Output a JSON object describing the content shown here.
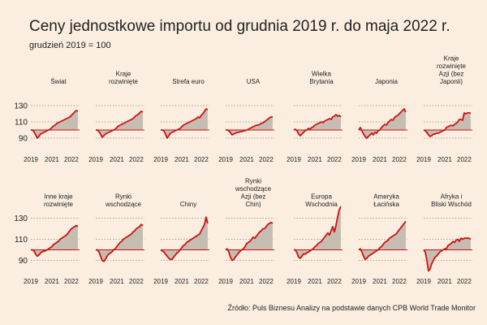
{
  "title": "Ceny jednostkowe importu od grudnia 2019 r. do maja 2022 r.",
  "subtitle": "grudzień 2019 = 100",
  "source": "Źródło: Puls Biznesu Analizy na podstawie danych CPB World Trade Monitor",
  "colors": {
    "line": "#cc1111",
    "fill": "#c5bdb2",
    "background": "#fbeee0",
    "grid": "#555555"
  },
  "chart_data": {
    "type": "area",
    "baseline": 100,
    "ylim": [
      85,
      135
    ],
    "yticks": [
      90,
      110,
      130
    ],
    "xlim": [
      2019.92,
      2022.42
    ],
    "xticks": [
      2019,
      2021,
      2022
    ],
    "xtick_positions": [
      2019.92,
      2021.0,
      2022.0
    ],
    "x": [
      2019.917,
      2020.0,
      2020.083,
      2020.167,
      2020.25,
      2020.333,
      2020.417,
      2020.5,
      2020.583,
      2020.667,
      2020.75,
      2020.833,
      2020.917,
      2021.0,
      2021.083,
      2021.167,
      2021.25,
      2021.333,
      2021.417,
      2021.5,
      2021.583,
      2021.667,
      2021.75,
      2021.833,
      2021.917,
      2022.0,
      2022.083,
      2022.167,
      2022.25,
      2022.333
    ],
    "series": [
      {
        "name": "Świat",
        "values": [
          100,
          100,
          98,
          94,
          90,
          92,
          95,
          96,
          97,
          98,
          99,
          100,
          101,
          103,
          105,
          106,
          108,
          109,
          110,
          111,
          112,
          113,
          114,
          115,
          116,
          118,
          120,
          122,
          124,
          123
        ]
      },
      {
        "name": "Kraje rozwinięte",
        "values": [
          100,
          100,
          98,
          95,
          91,
          93,
          95,
          96,
          97,
          98,
          99,
          100,
          101,
          103,
          105,
          106,
          107,
          108,
          109,
          110,
          111,
          112,
          113,
          114,
          116,
          118,
          119,
          121,
          123,
          122
        ]
      },
      {
        "name": "Strefa euro",
        "values": [
          100,
          100,
          99,
          95,
          90,
          93,
          96,
          97,
          98,
          99,
          100,
          101,
          102,
          104,
          106,
          107,
          108,
          109,
          110,
          111,
          112,
          113,
          114,
          116,
          115,
          118,
          120,
          123,
          126,
          125
        ]
      },
      {
        "name": "USA",
        "values": [
          100,
          100,
          99,
          97,
          94,
          95,
          96,
          97,
          97,
          98,
          98,
          99,
          99,
          100,
          101,
          102,
          103,
          104,
          105,
          106,
          106,
          107,
          108,
          109,
          110,
          112,
          113,
          115,
          116,
          116
        ]
      },
      {
        "name": "Wielka Brytania",
        "values": [
          100,
          101,
          99,
          95,
          93,
          95,
          97,
          99,
          100,
          102,
          101,
          103,
          104,
          106,
          107,
          108,
          109,
          110,
          109,
          111,
          112,
          113,
          114,
          113,
          116,
          117,
          119,
          117,
          118,
          116
        ]
      },
      {
        "name": "Japonia",
        "values": [
          100,
          103,
          99,
          95,
          92,
          90,
          92,
          94,
          96,
          94,
          97,
          96,
          99,
          100,
          103,
          105,
          107,
          106,
          109,
          111,
          113,
          112,
          115,
          117,
          118,
          120,
          122,
          124,
          126,
          122
        ]
      },
      {
        "name": "Kraje rozwinięte Azji (bez Japonii)",
        "values": [
          100,
          99,
          97,
          94,
          92,
          93,
          95,
          95,
          96,
          96,
          97,
          98,
          99,
          100,
          103,
          104,
          105,
          106,
          105,
          107,
          108,
          110,
          113,
          113,
          112,
          121,
          120,
          121,
          121,
          121
        ]
      },
      {
        "name": "Inne kraje rozwinięte",
        "values": [
          100,
          100,
          99,
          96,
          94,
          95,
          97,
          98,
          99,
          99,
          100,
          101,
          102,
          103,
          105,
          106,
          107,
          108,
          110,
          111,
          112,
          113,
          114,
          116,
          118,
          120,
          121,
          122,
          123,
          122
        ]
      },
      {
        "name": "Rynki wschodzące",
        "values": [
          100,
          100,
          98,
          94,
          90,
          89,
          91,
          94,
          96,
          97,
          98,
          100,
          101,
          103,
          105,
          107,
          108,
          110,
          111,
          112,
          113,
          114,
          115,
          117,
          118,
          120,
          121,
          122,
          124,
          123
        ]
      },
      {
        "name": "Chiny",
        "values": [
          100,
          99,
          98,
          96,
          94,
          92,
          91,
          91,
          93,
          95,
          97,
          98,
          100,
          102,
          104,
          105,
          107,
          108,
          109,
          110,
          111,
          112,
          113,
          114,
          115,
          118,
          121,
          124,
          131,
          125
        ]
      },
      {
        "name": "Rynki wschodzące Azji (bez Chin)",
        "values": [
          100,
          101,
          98,
          93,
          90,
          91,
          93,
          95,
          97,
          99,
          100,
          101,
          103,
          106,
          107,
          108,
          110,
          112,
          111,
          113,
          115,
          117,
          118,
          120,
          120,
          122,
          124,
          125,
          126,
          125
        ]
      },
      {
        "name": "Europa Wschodnia",
        "values": [
          100,
          100,
          97,
          93,
          92,
          94,
          96,
          96,
          97,
          98,
          99,
          100,
          101,
          103,
          104,
          106,
          107,
          108,
          110,
          112,
          114,
          116,
          114,
          118,
          122,
          117,
          123,
          131,
          138,
          141
        ]
      },
      {
        "name": "Ameryka Łacińska",
        "values": [
          100,
          101,
          98,
          94,
          91,
          92,
          94,
          95,
          96,
          97,
          98,
          99,
          100,
          102,
          103,
          105,
          107,
          108,
          109,
          111,
          112,
          113,
          114,
          115,
          117,
          119,
          121,
          123,
          125,
          127
        ]
      },
      {
        "name": "Afryka i Bliski Wschód",
        "values": [
          100,
          98,
          90,
          80,
          82,
          87,
          90,
          93,
          94,
          96,
          98,
          99,
          100,
          101,
          101,
          104,
          105,
          106,
          108,
          107,
          109,
          110,
          108,
          111,
          110,
          111,
          111,
          111,
          111,
          110
        ]
      }
    ]
  }
}
